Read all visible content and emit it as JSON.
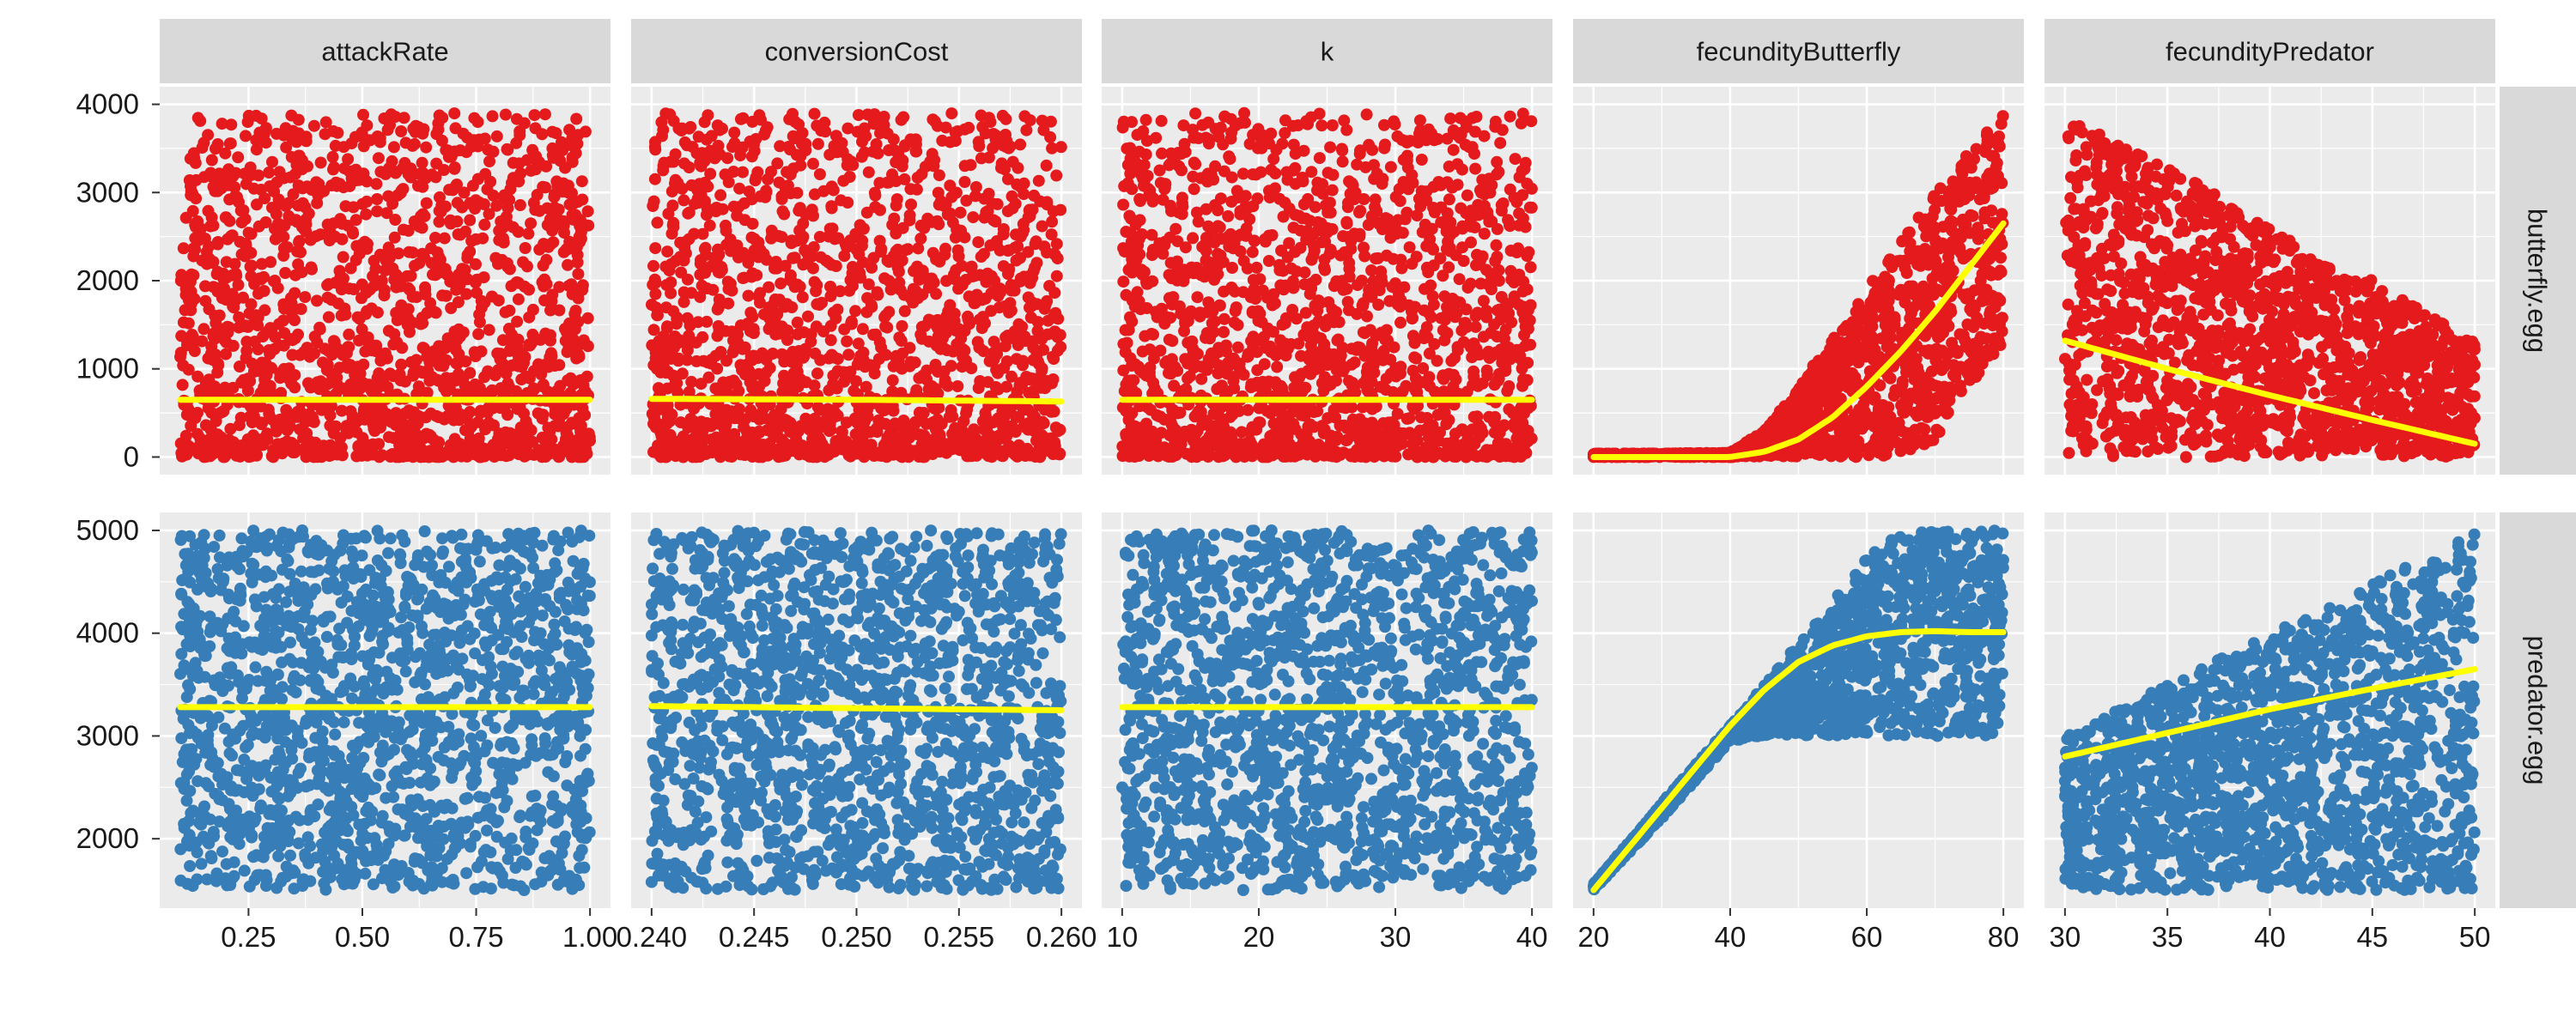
{
  "chart_data": {
    "type": "scatter",
    "layout": "facet-grid",
    "columns": [
      {
        "name": "attackRate",
        "xlim": [
          0.1,
          1.0
        ],
        "xticks": [
          0.25,
          0.5,
          0.75,
          1.0
        ],
        "xtick_labels": [
          "0.25",
          "0.50",
          "0.75",
          "1.00"
        ]
      },
      {
        "name": "conversionCost",
        "xlim": [
          0.24,
          0.26
        ],
        "xticks": [
          0.24,
          0.245,
          0.25,
          0.255,
          0.26
        ],
        "xtick_labels": [
          "0.240",
          "0.245",
          "0.250",
          "0.255",
          "0.260"
        ]
      },
      {
        "name": "k",
        "xlim": [
          10,
          40
        ],
        "xticks": [
          10,
          20,
          30,
          40
        ],
        "xtick_labels": [
          "10",
          "20",
          "30",
          "40"
        ]
      },
      {
        "name": "fecundityButterfly",
        "xlim": [
          20,
          80
        ],
        "xticks": [
          20,
          40,
          60,
          80
        ],
        "xtick_labels": [
          "20",
          "40",
          "60",
          "80"
        ]
      },
      {
        "name": "fecundityPredator",
        "xlim": [
          30,
          50
        ],
        "xticks": [
          30,
          35,
          40,
          45,
          50
        ],
        "xtick_labels": [
          "30",
          "35",
          "40",
          "45",
          "50"
        ]
      }
    ],
    "rows": [
      {
        "name": "butterfly.egg",
        "ylim": [
          0,
          4000
        ],
        "yticks": [
          0,
          1000,
          2000,
          3000,
          4000
        ],
        "ytick_labels": [
          "0",
          "1000",
          "2000",
          "3000",
          "4000"
        ],
        "point_color": "#E41A1C"
      },
      {
        "name": "predator.egg",
        "ylim": [
          1500,
          5000
        ],
        "yticks": [
          2000,
          3000,
          4000,
          5000
        ],
        "ytick_labels": [
          "2000",
          "3000",
          "4000",
          "5000"
        ],
        "point_color": "#377EB8"
      }
    ],
    "trend_color": "#FFFF00",
    "trend_lines": {
      "butterfly.egg": {
        "attackRate": {
          "x": [
            0.1,
            1.0
          ],
          "y": [
            650,
            650
          ]
        },
        "conversionCost": {
          "x": [
            0.24,
            0.25,
            0.26
          ],
          "y": [
            660,
            650,
            630
          ]
        },
        "k": {
          "x": [
            10,
            40
          ],
          "y": [
            650,
            650
          ]
        },
        "fecundityButterfly": {
          "x": [
            20,
            30,
            40,
            45,
            50,
            55,
            60,
            65,
            70,
            75,
            80
          ],
          "y": [
            0,
            0,
            0,
            60,
            200,
            450,
            800,
            1200,
            1650,
            2150,
            2650
          ]
        },
        "fecundityPredator": {
          "x": [
            30,
            35,
            40,
            45,
            50
          ],
          "y": [
            1320,
            1000,
            700,
            420,
            150
          ]
        }
      },
      "predator.egg": {
        "attackRate": {
          "x": [
            0.1,
            1.0
          ],
          "y": [
            3280,
            3280
          ]
        },
        "conversionCost": {
          "x": [
            0.24,
            0.25,
            0.26
          ],
          "y": [
            3290,
            3270,
            3250
          ]
        },
        "k": {
          "x": [
            10,
            40
          ],
          "y": [
            3280,
            3280
          ]
        },
        "fecundityButterfly": {
          "x": [
            20,
            30,
            40,
            45,
            50,
            55,
            60,
            65,
            70,
            75,
            80
          ],
          "y": [
            1500,
            2300,
            3100,
            3450,
            3720,
            3880,
            3970,
            4010,
            4020,
            4010,
            4010
          ]
        },
        "fecundityPredator": {
          "x": [
            30,
            35,
            40,
            45,
            50
          ],
          "y": [
            2800,
            3030,
            3260,
            3460,
            3650
          ]
        }
      }
    },
    "point_regions": {
      "butterfly.egg": {
        "attackRate": {
          "kind": "uniform",
          "x": [
            0.1,
            1.0
          ],
          "ymin": 0,
          "ymax": 3900,
          "density": "bottom-heavy"
        },
        "conversionCost": {
          "kind": "uniform",
          "x": [
            0.24,
            0.26
          ],
          "ymin": 0,
          "ymax": 3900,
          "density": "bottom-heavy"
        },
        "k": {
          "kind": "uniform",
          "x": [
            10,
            40
          ],
          "ymin": 0,
          "ymax": 3900,
          "density": "bottom-heavy"
        },
        "fecundityButterfly": {
          "kind": "band",
          "x": [
            20,
            30,
            40,
            45,
            50,
            55,
            60,
            65,
            70,
            75,
            80
          ],
          "ylow": [
            0,
            0,
            0,
            0,
            0,
            0,
            0,
            0,
            200,
            800,
            1300
          ],
          "yhigh": [
            40,
            40,
            50,
            300,
            800,
            1350,
            1900,
            2450,
            3000,
            3500,
            3900
          ]
        },
        "fecundityPredator": {
          "kind": "band",
          "x": [
            30,
            35,
            40,
            45,
            50
          ],
          "ylow": [
            0,
            0,
            0,
            0,
            0
          ],
          "yhigh": [
            3900,
            3300,
            2600,
            2000,
            1300
          ]
        }
      },
      "predator.egg": {
        "attackRate": {
          "kind": "uniform",
          "x": [
            0.1,
            1.0
          ],
          "ymin": 1500,
          "ymax": 5000,
          "density": "even"
        },
        "conversionCost": {
          "kind": "uniform",
          "x": [
            0.24,
            0.26
          ],
          "ymin": 1500,
          "ymax": 5000,
          "density": "even"
        },
        "k": {
          "kind": "uniform",
          "x": [
            10,
            40
          ],
          "ymin": 1500,
          "ymax": 5000,
          "density": "even"
        },
        "fecundityButterfly": {
          "kind": "band",
          "x": [
            20,
            30,
            40,
            45,
            50,
            55,
            60,
            65,
            70,
            75,
            80
          ],
          "ylow": [
            1500,
            2200,
            2950,
            3000,
            3000,
            3000,
            3000,
            3000,
            3000,
            3000,
            3000
          ],
          "yhigh": [
            1560,
            2350,
            3100,
            3500,
            3900,
            4300,
            4750,
            5000,
            5000,
            5000,
            5000
          ]
        },
        "fecundityPredator": {
          "kind": "band",
          "x": [
            30,
            35,
            40,
            45,
            50
          ],
          "ylow": [
            1500,
            1500,
            1500,
            1500,
            1500
          ],
          "yhigh": [
            3000,
            3500,
            4000,
            4500,
            5000
          ]
        }
      }
    },
    "grid": true,
    "legend": "none"
  }
}
